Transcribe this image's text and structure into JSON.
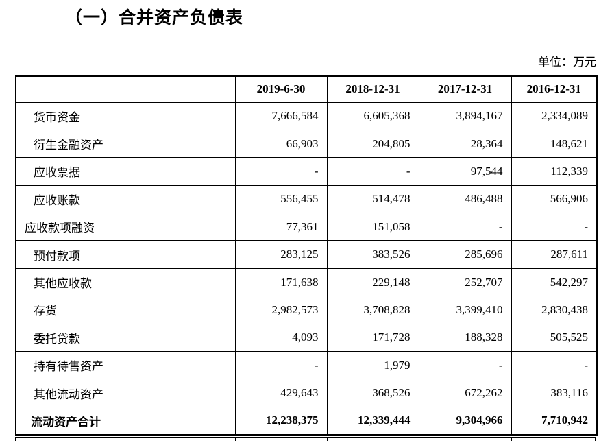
{
  "page": {
    "title": "（一）合并资产负债表",
    "unit_label": "单位：万元"
  },
  "colors": {
    "text": "#000000",
    "border": "#000000",
    "background": "#ffffff"
  },
  "table": {
    "columns": [
      "",
      "2019-6-30",
      "2018-12-31",
      "2017-12-31",
      "2016-12-31"
    ],
    "rows": [
      {
        "label": "货币资金",
        "indent": 1,
        "bold": false,
        "values": [
          "7,666,584",
          "6,605,368",
          "3,894,167",
          "2,334,089"
        ]
      },
      {
        "label": "衍生金融资产",
        "indent": 1,
        "bold": false,
        "values": [
          "66,903",
          "204,805",
          "28,364",
          "148,621"
        ]
      },
      {
        "label": "应收票据",
        "indent": 1,
        "bold": false,
        "values": [
          "-",
          "-",
          "97,544",
          "112,339"
        ]
      },
      {
        "label": "应收账款",
        "indent": 1,
        "bold": false,
        "values": [
          "556,455",
          "514,478",
          "486,488",
          "566,906"
        ]
      },
      {
        "label": "应收款项融资",
        "indent": 0,
        "bold": false,
        "values": [
          "77,361",
          "151,058",
          "-",
          "-"
        ]
      },
      {
        "label": "预付款项",
        "indent": 1,
        "bold": false,
        "values": [
          "283,125",
          "383,526",
          "285,696",
          "287,611"
        ]
      },
      {
        "label": "其他应收款",
        "indent": 1,
        "bold": false,
        "values": [
          "171,638",
          "229,148",
          "252,707",
          "542,297"
        ]
      },
      {
        "label": "存货",
        "indent": 1,
        "bold": false,
        "values": [
          "2,982,573",
          "3,708,828",
          "3,399,410",
          "2,830,438"
        ]
      },
      {
        "label": "委托贷款",
        "indent": 1,
        "bold": false,
        "values": [
          "4,093",
          "171,728",
          "188,328",
          "505,525"
        ]
      },
      {
        "label": "持有待售资产",
        "indent": 1,
        "bold": false,
        "values": [
          "-",
          "1,979",
          "-",
          "-"
        ]
      },
      {
        "label": "其他流动资产",
        "indent": 1,
        "bold": false,
        "values": [
          "429,643",
          "368,526",
          "672,262",
          "383,116"
        ]
      },
      {
        "label": "流动资产合计",
        "indent": "t",
        "bold": true,
        "values": [
          "12,238,375",
          "12,339,444",
          "9,304,966",
          "7,710,942"
        ]
      }
    ]
  }
}
